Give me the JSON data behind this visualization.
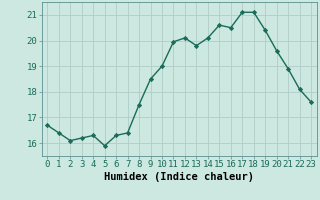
{
  "x": [
    0,
    1,
    2,
    3,
    4,
    5,
    6,
    7,
    8,
    9,
    10,
    11,
    12,
    13,
    14,
    15,
    16,
    17,
    18,
    19,
    20,
    21,
    22,
    23
  ],
  "y": [
    16.7,
    16.4,
    16.1,
    16.2,
    16.3,
    15.9,
    16.3,
    16.4,
    17.5,
    18.5,
    19.0,
    19.95,
    20.1,
    19.8,
    20.1,
    20.6,
    20.5,
    21.1,
    21.1,
    20.4,
    19.6,
    18.9,
    18.1,
    17.6
  ],
  "xlabel": "Humidex (Indice chaleur)",
  "ylim": [
    15.5,
    21.5
  ],
  "xlim": [
    -0.5,
    23.5
  ],
  "yticks": [
    16,
    17,
    18,
    19,
    20,
    21
  ],
  "xtick_labels": [
    "0",
    "1",
    "2",
    "3",
    "4",
    "5",
    "6",
    "7",
    "8",
    "9",
    "10",
    "11",
    "12",
    "13",
    "14",
    "15",
    "16",
    "17",
    "18",
    "19",
    "20",
    "21",
    "22",
    "23"
  ],
  "line_color": "#1a6b5a",
  "marker": "D",
  "markersize": 2.2,
  "linewidth": 1.0,
  "bg_color": "#cce8e0",
  "grid_color": "#b0ccc6",
  "xlabel_fontsize": 7.5,
  "tick_fontsize": 6.5
}
